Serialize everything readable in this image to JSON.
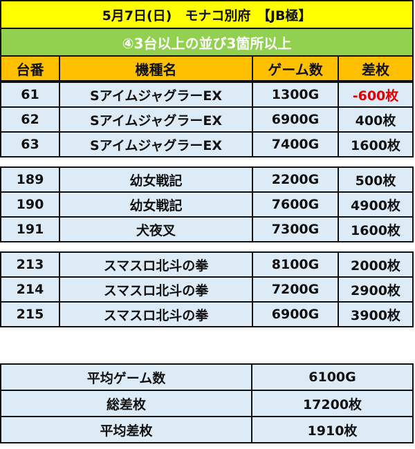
{
  "title": "5月7日(日)　モナコ別府　【JB極】",
  "subtitle": "④3台以上の並び3箇所以上",
  "headers": [
    "台番",
    "機種名",
    "ゲーム数",
    "差枚"
  ],
  "groups": [
    [
      [
        "61",
        "SアイムジャグラーEX",
        "1300G",
        "-600枚"
      ],
      [
        "62",
        "SアイムジャグラーEX",
        "6900G",
        "400枚"
      ],
      [
        "63",
        "SアイムジャグラーEX",
        "7400G",
        "1600枚"
      ]
    ],
    [
      [
        "189",
        "幼女戦記",
        "2200G",
        "500枚"
      ],
      [
        "190",
        "幼女戦記",
        "7600G",
        "4900枚"
      ],
      [
        "191",
        "犬夜叉",
        "7300G",
        "1600枚"
      ]
    ],
    [
      [
        "213",
        "スマスロ北斗の拳",
        "8100G",
        "2000枚"
      ],
      [
        "214",
        "スマスロ北斗の拳",
        "7200G",
        "2900枚"
      ],
      [
        "215",
        "スマスロ北斗の拳",
        "6900G",
        "3900枚"
      ]
    ]
  ],
  "summary": [
    [
      "平均ゲーム数",
      "6100G"
    ],
    [
      "総差枚",
      "17200枚"
    ],
    [
      "平均差枚",
      "1910枚"
    ]
  ],
  "colors": {
    "title_bg": "#ffff00",
    "subtitle_bg": "#92d050",
    "header_bg": "#ffc000",
    "row_bg": "#ddebf7",
    "negative": "#e00000"
  }
}
